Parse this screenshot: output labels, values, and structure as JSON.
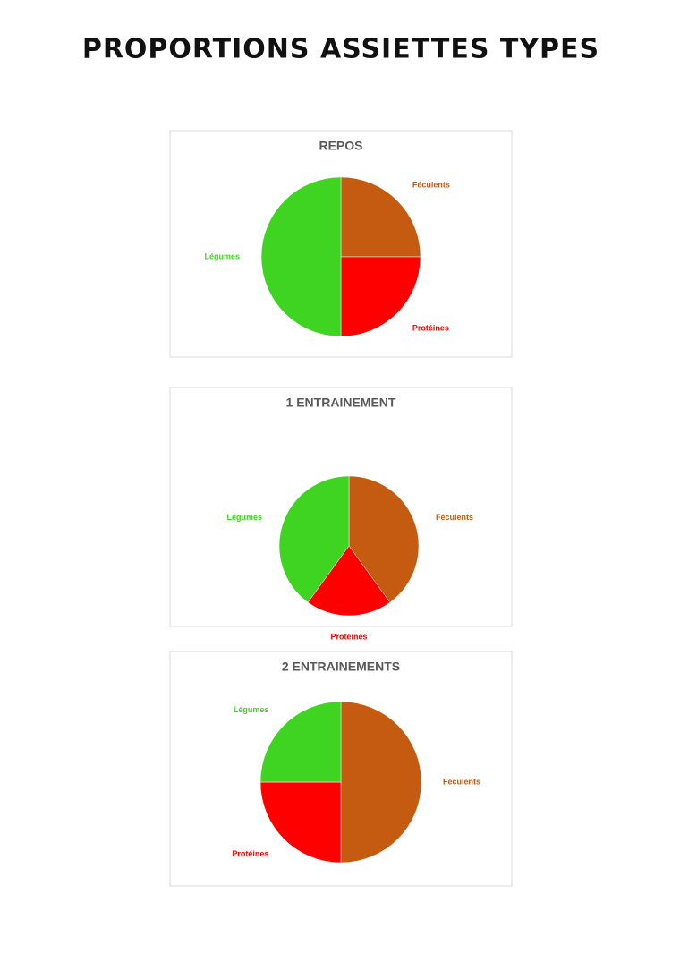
{
  "title": "PROPORTIONS ASSIETTES TYPES",
  "chart_data": [
    {
      "type": "pie",
      "title": "REPOS",
      "categories": [
        "Féculents",
        "Protéines",
        "Légumes"
      ],
      "values": [
        25,
        25,
        50
      ],
      "colors": [
        "#c55a11",
        "#ff0000",
        "#3fd421"
      ]
    },
    {
      "type": "pie",
      "title": "1 ENTRAINEMENT",
      "categories": [
        "Féculents",
        "Protéines",
        "Légumes"
      ],
      "values": [
        40,
        20,
        40
      ],
      "colors": [
        "#c55a11",
        "#ff0000",
        "#3fd421"
      ]
    },
    {
      "type": "pie",
      "title": "2 ENTRAINEMENTS",
      "categories": [
        "Féculents",
        "Protéines",
        "Légumes"
      ],
      "values": [
        50,
        25,
        25
      ],
      "colors": [
        "#c55a11",
        "#ff0000",
        "#3fd421"
      ]
    }
  ]
}
